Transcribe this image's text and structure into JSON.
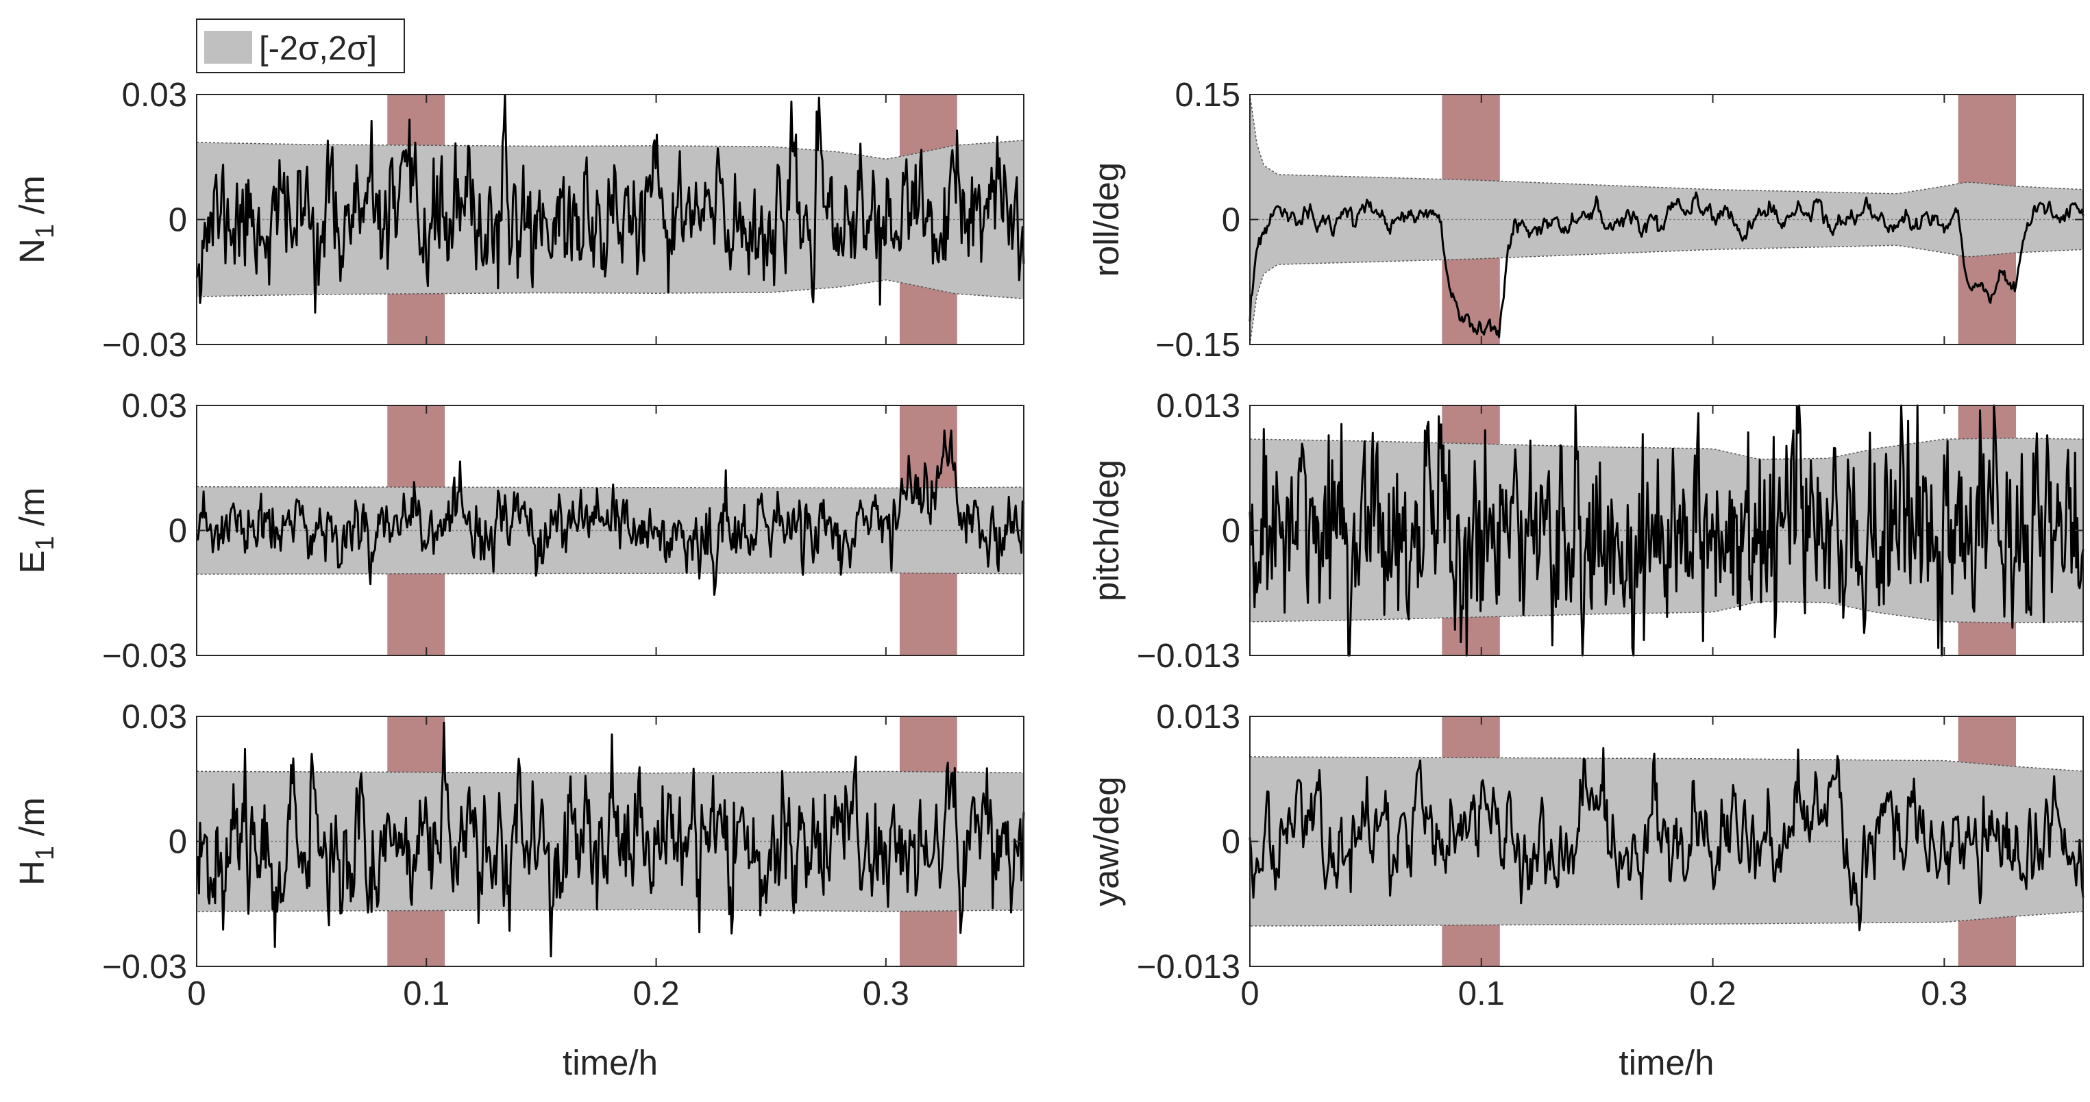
{
  "chart_data": {
    "type": "line",
    "legend": {
      "label": "[-2σ,2σ]",
      "placement": "top-left",
      "color": "#c0c0c0"
    },
    "colors": {
      "band": "#c0c0c0",
      "outage": "#b98585",
      "line": "#000000",
      "zero": "#808080"
    },
    "outage_intervals": [
      [
        0.083,
        0.108
      ],
      [
        0.306,
        0.331
      ]
    ],
    "shared_xaxis": {
      "label": "time/h",
      "xlim": [
        0,
        0.36
      ],
      "ticks": [
        {
          "value": 0,
          "label": "0"
        },
        {
          "value": 0.1,
          "label": "0.1"
        },
        {
          "value": 0.2,
          "label": "0.2"
        },
        {
          "value": 0.3,
          "label": "0.3"
        }
      ]
    },
    "panels": [
      {
        "ylabel": "N",
        "ylabel_sub": "1",
        "ylabel_unit": "/m",
        "ylim": [
          -0.03,
          0.03
        ],
        "yticks": [
          {
            "value": 0.03,
            "label": "0.03"
          },
          {
            "value": 0,
            "label": "0"
          },
          {
            "value": -0.03,
            "label": "−0.03"
          }
        ],
        "band": {
          "t": [
            0,
            0.05,
            0.1,
            0.15,
            0.2,
            0.25,
            0.28,
            0.3,
            0.31,
            0.33,
            0.36
          ],
          "upper": [
            0.0185,
            0.018,
            0.0178,
            0.0176,
            0.0177,
            0.0175,
            0.0162,
            0.0145,
            0.0155,
            0.0178,
            0.019
          ]
        },
        "signal": {
          "points": 720,
          "seed": 11,
          "noise": 0.0048,
          "ar": 0.55,
          "drift": 0.0,
          "start": -0.012,
          "events": []
        }
      },
      {
        "ylabel": "E",
        "ylabel_sub": "1",
        "ylabel_unit": "/m",
        "ylim": [
          -0.03,
          0.03
        ],
        "yticks": [
          {
            "value": 0.03,
            "label": "0.03"
          },
          {
            "value": 0,
            "label": "0"
          },
          {
            "value": -0.03,
            "label": "−0.03"
          }
        ],
        "band": {
          "t": [
            0,
            0.1,
            0.2,
            0.3,
            0.33,
            0.36
          ],
          "upper": [
            0.0105,
            0.0104,
            0.0103,
            0.0102,
            0.0103,
            0.0104
          ]
        },
        "signal": {
          "points": 720,
          "seed": 23,
          "noise": 0.0026,
          "ar": 0.55,
          "drift": 0.0,
          "start": -0.016,
          "events": [
            {
              "t0": 0.085,
              "t1": 0.097,
              "shift": 0.008
            },
            {
              "t0": 0.306,
              "t1": 0.331,
              "shift": 0.011
            },
            {
              "t0": 0.203,
              "t1": 0.206,
              "shift": -0.007
            },
            {
              "t0": 0.222,
              "t1": 0.226,
              "shift": -0.009
            }
          ]
        }
      },
      {
        "ylabel": "H",
        "ylabel_sub": "1",
        "ylabel_unit": "/m",
        "ylim": [
          -0.03,
          0.03
        ],
        "yticks": [
          {
            "value": 0.03,
            "label": "0.03"
          },
          {
            "value": 0,
            "label": "0"
          },
          {
            "value": -0.03,
            "label": "−0.03"
          }
        ],
        "band": {
          "t": [
            0,
            0.1,
            0.2,
            0.3,
            0.36
          ],
          "upper": [
            0.0168,
            0.0166,
            0.0164,
            0.0168,
            0.0165
          ]
        },
        "signal": {
          "points": 720,
          "seed": 37,
          "noise": 0.0052,
          "ar": 0.6,
          "drift": 0.0,
          "start": -0.02,
          "events": []
        }
      },
      {
        "ylabel": "roll",
        "ylabel_sub": "",
        "ylabel_unit": "/deg",
        "ylim": [
          -0.15,
          0.15
        ],
        "yticks": [
          {
            "value": 0.15,
            "label": "0.15"
          },
          {
            "value": 0,
            "label": "0"
          },
          {
            "value": -0.15,
            "label": "−0.15"
          }
        ],
        "band": {
          "t": [
            0,
            0.002,
            0.006,
            0.012,
            0.05,
            0.1,
            0.2,
            0.28,
            0.3,
            0.31,
            0.33,
            0.36
          ],
          "upper": [
            0.15,
            0.1,
            0.065,
            0.054,
            0.051,
            0.047,
            0.036,
            0.031,
            0.04,
            0.045,
            0.04,
            0.036
          ]
        },
        "signal": {
          "points": 720,
          "seed": 53,
          "noise": 0.006,
          "ar": 0.85,
          "drift": 0.0,
          "start": -0.15,
          "events": [
            {
              "t0": 0.083,
              "t1": 0.108,
              "shift": -0.12
            },
            {
              "t0": 0.306,
              "t1": 0.331,
              "shift": -0.075
            }
          ]
        }
      },
      {
        "ylabel": "pitch",
        "ylabel_sub": "",
        "ylabel_unit": "/deg",
        "ylim": [
          -0.013,
          0.013
        ],
        "yticks": [
          {
            "value": 0.013,
            "label": "0.013"
          },
          {
            "value": 0,
            "label": "0"
          },
          {
            "value": -0.013,
            "label": "−0.013"
          }
        ],
        "band": {
          "t": [
            0,
            0.05,
            0.1,
            0.15,
            0.2,
            0.22,
            0.25,
            0.27,
            0.3,
            0.33,
            0.36
          ],
          "upper": [
            0.0095,
            0.0093,
            0.009,
            0.0087,
            0.0085,
            0.0074,
            0.0075,
            0.0085,
            0.0095,
            0.0096,
            0.0095
          ]
        },
        "signal": {
          "points": 720,
          "seed": 71,
          "noise": 0.0033,
          "ar": 0.35,
          "drift": 0.0,
          "start": 0.0,
          "events": []
        }
      },
      {
        "ylabel": "yaw",
        "ylabel_sub": "",
        "ylabel_unit": "/deg",
        "ylim": [
          -0.013,
          0.013
        ],
        "yticks": [
          {
            "value": 0.013,
            "label": "0.013"
          },
          {
            "value": 0,
            "label": "0"
          },
          {
            "value": -0.013,
            "label": "−0.013"
          }
        ],
        "band": {
          "t": [
            0,
            0.1,
            0.2,
            0.25,
            0.3,
            0.33,
            0.36
          ],
          "upper": [
            0.0088,
            0.0087,
            0.0086,
            0.0085,
            0.0084,
            0.0078,
            0.0073
          ]
        },
        "signal": {
          "points": 720,
          "seed": 97,
          "noise": 0.0021,
          "ar": 0.8,
          "drift": 0.0,
          "start": 0.0,
          "events": [
            {
              "t0": 0.142,
              "t1": 0.148,
              "shift": 0.006
            }
          ]
        }
      }
    ]
  }
}
